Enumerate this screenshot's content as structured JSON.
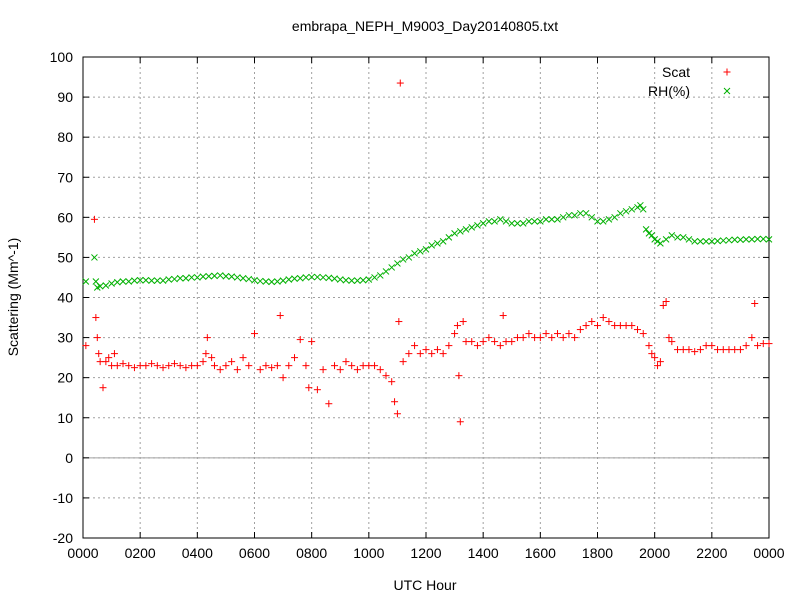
{
  "chart_data": {
    "type": "scatter",
    "title": "embrapa_NEPH_M9003_Day20140805.txt",
    "xlabel": "UTC Hour",
    "ylabel": "Scattering (Mm^-1)",
    "xlim": [
      0,
      24
    ],
    "ylim": [
      -20,
      100
    ],
    "x_ticks": [
      0,
      2,
      4,
      6,
      8,
      10,
      12,
      14,
      16,
      18,
      20,
      22,
      24
    ],
    "x_tick_labels": [
      "0000",
      "0200",
      "0400",
      "0600",
      "0800",
      "1000",
      "1200",
      "1400",
      "1600",
      "1800",
      "2000",
      "2200",
      "0000"
    ],
    "y_ticks": [
      -20,
      -10,
      0,
      10,
      20,
      30,
      40,
      50,
      60,
      70,
      80,
      90,
      100
    ],
    "grid": true,
    "zero_line": true,
    "legend_position": "top-right",
    "series": [
      {
        "name": "Scat",
        "marker": "plus",
        "color": "#ff0000",
        "points": [
          [
            0.1,
            28
          ],
          [
            0.4,
            59.5
          ],
          [
            0.45,
            35
          ],
          [
            0.5,
            30
          ],
          [
            0.55,
            26
          ],
          [
            0.6,
            24
          ],
          [
            0.7,
            17.5
          ],
          [
            0.8,
            24
          ],
          [
            0.9,
            25
          ],
          [
            1.0,
            23
          ],
          [
            1.1,
            26
          ],
          [
            1.2,
            23
          ],
          [
            1.4,
            23.5
          ],
          [
            1.6,
            23
          ],
          [
            1.8,
            22.5
          ],
          [
            2.0,
            23
          ],
          [
            2.2,
            23
          ],
          [
            2.4,
            23.5
          ],
          [
            2.6,
            23
          ],
          [
            2.8,
            22.5
          ],
          [
            3.0,
            23
          ],
          [
            3.2,
            23.5
          ],
          [
            3.4,
            23
          ],
          [
            3.6,
            22.5
          ],
          [
            3.8,
            23
          ],
          [
            4.0,
            23
          ],
          [
            4.2,
            24
          ],
          [
            4.3,
            26
          ],
          [
            4.35,
            30
          ],
          [
            4.5,
            25
          ],
          [
            4.6,
            23
          ],
          [
            4.8,
            22
          ],
          [
            5.0,
            23
          ],
          [
            5.2,
            24
          ],
          [
            5.4,
            22
          ],
          [
            5.6,
            25
          ],
          [
            5.8,
            23
          ],
          [
            6.0,
            31
          ],
          [
            6.2,
            22
          ],
          [
            6.4,
            23
          ],
          [
            6.6,
            22.5
          ],
          [
            6.8,
            23
          ],
          [
            6.9,
            35.5
          ],
          [
            7.0,
            20
          ],
          [
            7.2,
            23
          ],
          [
            7.4,
            25
          ],
          [
            7.6,
            29.5
          ],
          [
            7.8,
            23
          ],
          [
            7.9,
            17.5
          ],
          [
            8.0,
            29
          ],
          [
            8.2,
            17
          ],
          [
            8.4,
            22
          ],
          [
            8.6,
            13.5
          ],
          [
            8.8,
            23
          ],
          [
            9.0,
            22
          ],
          [
            9.2,
            24
          ],
          [
            9.4,
            23
          ],
          [
            9.6,
            22
          ],
          [
            9.8,
            23
          ],
          [
            10.0,
            23
          ],
          [
            10.2,
            23
          ],
          [
            10.4,
            22
          ],
          [
            10.6,
            20.5
          ],
          [
            10.8,
            19
          ],
          [
            10.9,
            14
          ],
          [
            11.0,
            11
          ],
          [
            11.05,
            34
          ],
          [
            11.1,
            93.5
          ],
          [
            11.2,
            24
          ],
          [
            11.4,
            26
          ],
          [
            11.6,
            28
          ],
          [
            11.8,
            26
          ],
          [
            12.0,
            27
          ],
          [
            12.2,
            26
          ],
          [
            12.4,
            27
          ],
          [
            12.6,
            26
          ],
          [
            12.8,
            28
          ],
          [
            13.0,
            31
          ],
          [
            13.1,
            33
          ],
          [
            13.15,
            20.5
          ],
          [
            13.2,
            9
          ],
          [
            13.3,
            34
          ],
          [
            13.4,
            29
          ],
          [
            13.6,
            29
          ],
          [
            13.8,
            28
          ],
          [
            14.0,
            29
          ],
          [
            14.2,
            30
          ],
          [
            14.4,
            29
          ],
          [
            14.6,
            28
          ],
          [
            14.7,
            35.5
          ],
          [
            14.8,
            29
          ],
          [
            15.0,
            29
          ],
          [
            15.2,
            30
          ],
          [
            15.4,
            30
          ],
          [
            15.6,
            31
          ],
          [
            15.8,
            30
          ],
          [
            16.0,
            30
          ],
          [
            16.2,
            31
          ],
          [
            16.4,
            30
          ],
          [
            16.6,
            31
          ],
          [
            16.8,
            30
          ],
          [
            17.0,
            31
          ],
          [
            17.2,
            30
          ],
          [
            17.4,
            32
          ],
          [
            17.6,
            33
          ],
          [
            17.8,
            34
          ],
          [
            18.0,
            33
          ],
          [
            18.2,
            35
          ],
          [
            18.4,
            34
          ],
          [
            18.6,
            33
          ],
          [
            18.8,
            33
          ],
          [
            19.0,
            33
          ],
          [
            19.2,
            33
          ],
          [
            19.4,
            32
          ],
          [
            19.6,
            31
          ],
          [
            19.8,
            28
          ],
          [
            19.9,
            26
          ],
          [
            20.0,
            25
          ],
          [
            20.1,
            23
          ],
          [
            20.2,
            24
          ],
          [
            20.3,
            38
          ],
          [
            20.4,
            39
          ],
          [
            20.5,
            30
          ],
          [
            20.6,
            29
          ],
          [
            20.8,
            27
          ],
          [
            21.0,
            27
          ],
          [
            21.2,
            27
          ],
          [
            21.4,
            26.5
          ],
          [
            21.6,
            27
          ],
          [
            21.8,
            28
          ],
          [
            22.0,
            28
          ],
          [
            22.2,
            27
          ],
          [
            22.4,
            27
          ],
          [
            22.6,
            27
          ],
          [
            22.8,
            27
          ],
          [
            23.0,
            27
          ],
          [
            23.2,
            28
          ],
          [
            23.4,
            30
          ],
          [
            23.5,
            38.5
          ],
          [
            23.6,
            28
          ],
          [
            23.8,
            28.5
          ],
          [
            24.0,
            28.5
          ]
        ]
      },
      {
        "name": "RH(%)",
        "marker": "cross",
        "color": "#00b000",
        "points": [
          [
            0.1,
            44
          ],
          [
            0.4,
            50
          ],
          [
            0.45,
            44
          ],
          [
            0.5,
            42.5
          ],
          [
            0.6,
            42.8
          ],
          [
            0.8,
            43
          ],
          [
            1.0,
            43.5
          ],
          [
            1.2,
            43.8
          ],
          [
            1.4,
            44
          ],
          [
            1.6,
            44
          ],
          [
            1.8,
            44.2
          ],
          [
            2.0,
            44.3
          ],
          [
            2.2,
            44.3
          ],
          [
            2.4,
            44.2
          ],
          [
            2.6,
            44.2
          ],
          [
            2.8,
            44.2
          ],
          [
            3.0,
            44.5
          ],
          [
            3.2,
            44.6
          ],
          [
            3.4,
            44.8
          ],
          [
            3.6,
            44.8
          ],
          [
            3.8,
            45
          ],
          [
            4.0,
            45
          ],
          [
            4.2,
            45.2
          ],
          [
            4.4,
            45.3
          ],
          [
            4.6,
            45.4
          ],
          [
            4.8,
            45.5
          ],
          [
            5.0,
            45.3
          ],
          [
            5.2,
            45.2
          ],
          [
            5.4,
            45
          ],
          [
            5.6,
            44.8
          ],
          [
            5.8,
            44.6
          ],
          [
            6.0,
            44.3
          ],
          [
            6.2,
            44.1
          ],
          [
            6.4,
            44
          ],
          [
            6.6,
            43.9
          ],
          [
            6.8,
            44
          ],
          [
            7.0,
            44.2
          ],
          [
            7.2,
            44.5
          ],
          [
            7.4,
            44.7
          ],
          [
            7.6,
            44.8
          ],
          [
            7.8,
            45
          ],
          [
            8.0,
            45.1
          ],
          [
            8.2,
            45.1
          ],
          [
            8.4,
            45
          ],
          [
            8.6,
            44.9
          ],
          [
            8.8,
            44.7
          ],
          [
            9.0,
            44.5
          ],
          [
            9.2,
            44.3
          ],
          [
            9.4,
            44.2
          ],
          [
            9.6,
            44.2
          ],
          [
            9.8,
            44.3
          ],
          [
            10.0,
            44.5
          ],
          [
            10.2,
            45
          ],
          [
            10.4,
            45.5
          ],
          [
            10.6,
            46.5
          ],
          [
            10.8,
            47.5
          ],
          [
            11.0,
            48.5
          ],
          [
            11.2,
            49.5
          ],
          [
            11.4,
            50
          ],
          [
            11.6,
            51
          ],
          [
            11.8,
            51.5
          ],
          [
            12.0,
            52
          ],
          [
            12.2,
            53
          ],
          [
            12.4,
            53.5
          ],
          [
            12.6,
            54
          ],
          [
            12.8,
            55
          ],
          [
            13.0,
            56
          ],
          [
            13.2,
            56.5
          ],
          [
            13.4,
            57
          ],
          [
            13.6,
            57.5
          ],
          [
            13.8,
            58
          ],
          [
            14.0,
            58.5
          ],
          [
            14.2,
            59
          ],
          [
            14.4,
            59
          ],
          [
            14.6,
            59.5
          ],
          [
            14.8,
            59
          ],
          [
            15.0,
            58.5
          ],
          [
            15.2,
            58.5
          ],
          [
            15.4,
            58.5
          ],
          [
            15.6,
            59
          ],
          [
            15.8,
            59
          ],
          [
            16.0,
            59
          ],
          [
            16.2,
            59.5
          ],
          [
            16.4,
            59.5
          ],
          [
            16.6,
            59.5
          ],
          [
            16.8,
            60
          ],
          [
            17.0,
            60.5
          ],
          [
            17.2,
            60.5
          ],
          [
            17.4,
            61
          ],
          [
            17.6,
            61
          ],
          [
            17.8,
            60
          ],
          [
            18.0,
            59
          ],
          [
            18.2,
            59
          ],
          [
            18.4,
            59.5
          ],
          [
            18.6,
            60
          ],
          [
            18.8,
            61
          ],
          [
            19.0,
            61.5
          ],
          [
            19.2,
            62
          ],
          [
            19.4,
            62.5
          ],
          [
            19.5,
            63
          ],
          [
            19.6,
            62
          ],
          [
            19.7,
            57
          ],
          [
            19.8,
            56
          ],
          [
            19.9,
            55.5
          ],
          [
            20.0,
            54.5
          ],
          [
            20.1,
            54
          ],
          [
            20.2,
            53.5
          ],
          [
            20.4,
            54.5
          ],
          [
            20.6,
            55.5
          ],
          [
            20.8,
            55
          ],
          [
            21.0,
            55
          ],
          [
            21.2,
            54.5
          ],
          [
            21.4,
            54
          ],
          [
            21.6,
            54
          ],
          [
            21.8,
            54
          ],
          [
            22.0,
            54
          ],
          [
            22.2,
            54.1
          ],
          [
            22.4,
            54.2
          ],
          [
            22.6,
            54.3
          ],
          [
            22.8,
            54.4
          ],
          [
            23.0,
            54.4
          ],
          [
            23.2,
            54.5
          ],
          [
            23.4,
            54.5
          ],
          [
            23.6,
            54.6
          ],
          [
            23.8,
            54.6
          ],
          [
            24.0,
            54.5
          ]
        ]
      }
    ]
  }
}
